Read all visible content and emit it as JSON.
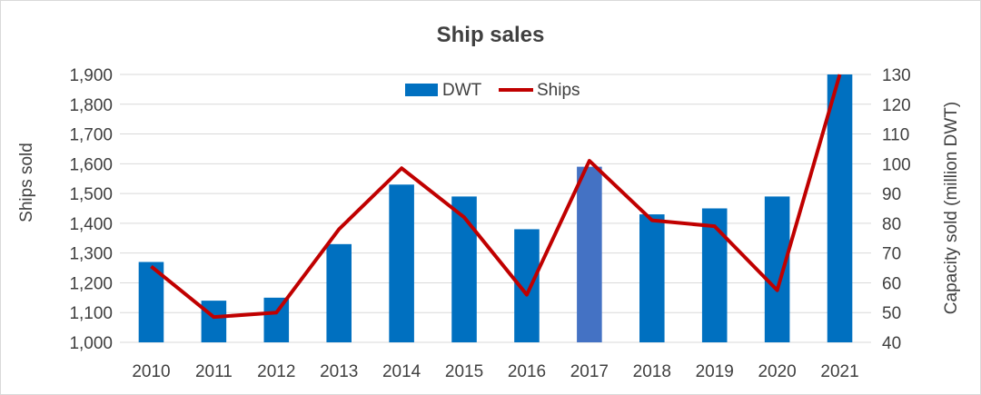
{
  "chart_data": {
    "type": "bar",
    "title": "Ship sales",
    "xlabel": "",
    "ylabel": "Ships sold",
    "y2label": "Capacity sold (million DWT)",
    "categories": [
      "2010",
      "2011",
      "2012",
      "2013",
      "2014",
      "2015",
      "2016",
      "2017",
      "2018",
      "2019",
      "2020",
      "2021"
    ],
    "ylim": [
      1000,
      1900
    ],
    "y2lim": [
      40,
      130
    ],
    "yticks": [
      "1,000",
      "1,100",
      "1,200",
      "1,300",
      "1,400",
      "1,500",
      "1,600",
      "1,700",
      "1,800",
      "1,900"
    ],
    "y2ticks": [
      "40",
      "50",
      "60",
      "70",
      "80",
      "90",
      "100",
      "110",
      "120",
      "130"
    ],
    "grid": true,
    "legend": "top-center",
    "series": [
      {
        "name": "DWT",
        "type": "bar",
        "axis": "right",
        "values": [
          67,
          54,
          55,
          73,
          93,
          89,
          78,
          99,
          83,
          85,
          89,
          130
        ],
        "color": "#0070c0",
        "highlight_index": 7,
        "highlight_color": "#4472c4"
      },
      {
        "name": "Ships",
        "type": "line",
        "axis": "left",
        "values": [
          1255,
          1085,
          1100,
          1380,
          1585,
          1420,
          1160,
          1610,
          1410,
          1390,
          1175,
          1900
        ],
        "color": "#c00000"
      }
    ]
  }
}
